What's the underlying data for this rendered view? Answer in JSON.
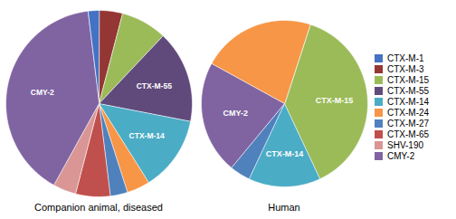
{
  "chart_data": [
    {
      "type": "pie",
      "title": "Companion animal, diseased",
      "categories": [
        "CTX-M-1",
        "CTX-M-3",
        "CTX-M-15",
        "CTX-M-55",
        "CTX-M-14",
        "CTX-M-24",
        "CTX-M-27",
        "CTX-M-65",
        "SHV-190",
        "CMY-2"
      ],
      "values": [
        2.0,
        4.0,
        8.0,
        16.0,
        13.0,
        4.0,
        3.0,
        6.0,
        4.0,
        40.0
      ],
      "colors": [
        "#4472C4",
        "#943634",
        "#9BBB59",
        "#604A7B",
        "#4BACC6",
        "#F79646",
        "#4F81BD",
        "#C0504D",
        "#D99694",
        "#8064A2"
      ],
      "annotations": [
        "CTX-M-55",
        "CTX-M-14",
        "CMY-2"
      ],
      "legend": "right"
    },
    {
      "type": "pie",
      "title": "Human",
      "categories": [
        "CTX-M-15",
        "CTX-M-14",
        "CTX-M-27",
        "CMY-2",
        "CTX-M-24"
      ],
      "values": [
        38.0,
        14.0,
        4.0,
        22.0,
        22.0
      ],
      "colors": [
        "#9BBB59",
        "#4BACC6",
        "#4F81BD",
        "#8064A2",
        "#F79646"
      ],
      "annotations": [
        "CTX-M-15",
        "CTX-M-14",
        "CMY-2"
      ]
    }
  ]
}
